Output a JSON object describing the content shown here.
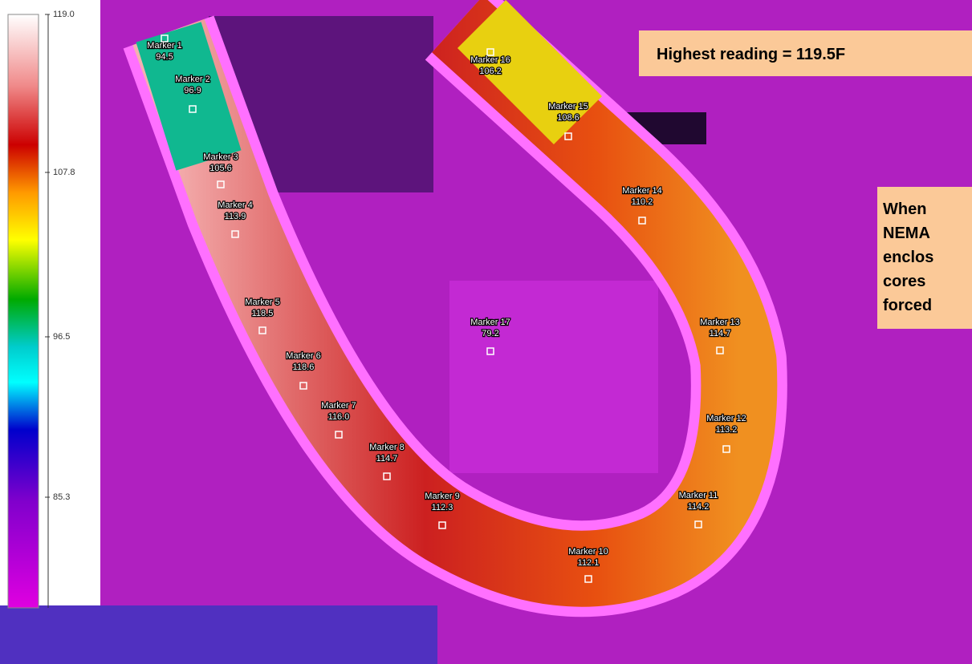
{
  "scale": {
    "ticks": [
      "119.0",
      "107.8",
      "96.5",
      "85.3"
    ]
  },
  "markers": [
    {
      "label": "Marker 1",
      "value": "94.5"
    },
    {
      "label": "Marker 2",
      "value": "96.9"
    },
    {
      "label": "Marker 3",
      "value": "105.6"
    },
    {
      "label": "Marker 4",
      "value": "113.9"
    },
    {
      "label": "Marker 5",
      "value": "118.5"
    },
    {
      "label": "Marker 6",
      "value": "118.6"
    },
    {
      "label": "Marker 7",
      "value": "116.0"
    },
    {
      "label": "Marker 8",
      "value": "114.7"
    },
    {
      "label": "Marker 9",
      "value": "112.3"
    },
    {
      "label": "Marker 10",
      "value": "112.1"
    },
    {
      "label": "Marker 11",
      "value": "114.2"
    },
    {
      "label": "Marker 12",
      "value": "113.2"
    },
    {
      "label": "Marker 13",
      "value": "114.7"
    },
    {
      "label": "Marker 14",
      "value": "110.2"
    },
    {
      "label": "Marker 15",
      "value": "108.6"
    },
    {
      "label": "Marker 16",
      "value": "106.2"
    },
    {
      "label": "Marker 17",
      "value": "79.2"
    }
  ],
  "callouts": {
    "highest": "Highest reading = 119.5F",
    "note": [
      "When",
      "NEMA",
      "enclos",
      "cores",
      "forced"
    ]
  }
}
